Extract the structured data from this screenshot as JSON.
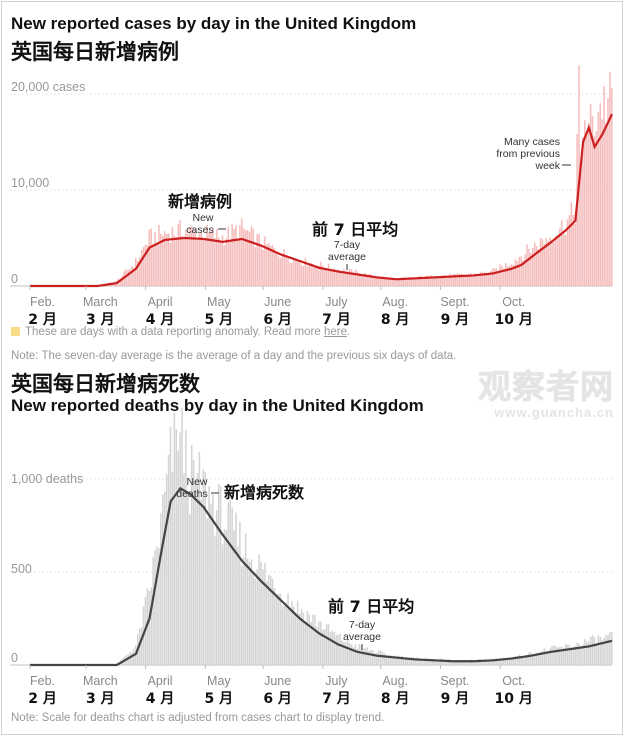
{
  "cases_title_en": "New reported cases by day in the United Kingdom",
  "cases_title_cn": "英国每日新增病例",
  "deaths_title_cn": "英国每日新增病死数",
  "deaths_title_en": "New reported deaths by day in the United Kingdom",
  "anomaly_note": "These are days with a data reporting anomaly. Read more",
  "anomaly_link": "here",
  "anomaly_end": ".",
  "note_average": "Note: The seven-day average is the average of a day and the previous six days of data.",
  "note_scale": "Note: Scale for deaths chart is adjusted from cases chart to display trend.",
  "watermark": {
    "main": "观察者网",
    "sub": "www.guancha.cn"
  },
  "colors": {
    "cases_bar": "#f5bcbc",
    "cases_line": "#cc1f1f",
    "deaths_bar": "#d4d4d4",
    "deaths_line": "#444444",
    "anomaly": "#f7dc8a"
  },
  "chart_data": [
    {
      "type": "bar",
      "title": "New reported cases by day in the United Kingdom",
      "subtitle": "英国每日新增病例",
      "ylabel": "cases",
      "ylim": [
        0,
        20000
      ],
      "y_ticks": [
        "0",
        "10,000",
        "20,000 cases"
      ],
      "months_en": [
        "Feb.",
        "March",
        "April",
        "May",
        "June",
        "July",
        "Aug.",
        "Sept.",
        "Oct."
      ],
      "months_cn": [
        "2 月",
        "3 月",
        "4 月",
        "5 月",
        "6 月",
        "7 月",
        "8 月",
        "9 月",
        "10 月"
      ],
      "series": [
        {
          "name": "New cases (7-day average)",
          "knots": [
            [
              0,
              0
            ],
            [
              35,
              0
            ],
            [
              45,
              300
            ],
            [
              55,
              1800
            ],
            [
              62,
              4000
            ],
            [
              70,
              4800
            ],
            [
              80,
              5000
            ],
            [
              90,
              4900
            ],
            [
              100,
              4600
            ],
            [
              110,
              4900
            ],
            [
              120,
              4200
            ],
            [
              130,
              3300
            ],
            [
              140,
              2600
            ],
            [
              150,
              1900
            ],
            [
              160,
              1500
            ],
            [
              170,
              1200
            ],
            [
              180,
              900
            ],
            [
              190,
              700
            ],
            [
              200,
              800
            ],
            [
              210,
              900
            ],
            [
              220,
              1000
            ],
            [
              230,
              1100
            ],
            [
              240,
              1300
            ],
            [
              250,
              1800
            ],
            [
              255,
              2200
            ],
            [
              262,
              3300
            ],
            [
              270,
              4500
            ],
            [
              278,
              5800
            ],
            [
              283,
              6800
            ],
            [
              287,
              15000
            ],
            [
              290,
              16500
            ],
            [
              293,
              14500
            ],
            [
              297,
              15800
            ],
            [
              302,
              17900
            ]
          ]
        },
        {
          "name": "Daily reported cases",
          "knots": [
            [
              0,
              0
            ],
            [
              35,
              0
            ],
            [
              45,
              500
            ],
            [
              55,
              2500
            ],
            [
              62,
              5000
            ],
            [
              70,
              5500
            ],
            [
              80,
              5800
            ],
            [
              90,
              5500
            ],
            [
              100,
              5100
            ],
            [
              110,
              6000
            ],
            [
              120,
              4500
            ],
            [
              130,
              3500
            ],
            [
              140,
              2600
            ],
            [
              150,
              2200
            ],
            [
              160,
              1700
            ],
            [
              170,
              1400
            ],
            [
              180,
              900
            ],
            [
              190,
              700
            ],
            [
              200,
              850
            ],
            [
              210,
              1000
            ],
            [
              220,
              1100
            ],
            [
              230,
              1200
            ],
            [
              240,
              1500
            ],
            [
              250,
              2500
            ],
            [
              262,
              4200
            ],
            [
              270,
              5200
            ],
            [
              278,
              6500
            ],
            [
              283,
              7800
            ],
            [
              285,
              23000
            ],
            [
              290,
              16000
            ],
            [
              294,
              18000
            ],
            [
              297,
              19200
            ],
            [
              302,
              19000
            ]
          ]
        }
      ],
      "annotations": [
        {
          "text_cn": "新增病例",
          "text_en": [
            "New",
            "cases"
          ]
        },
        {
          "text_cn": "前 7 日平均",
          "text_en": [
            "7-day",
            "average"
          ]
        },
        {
          "text_en": [
            "Many cases",
            "from previous",
            "week"
          ]
        }
      ]
    },
    {
      "type": "bar",
      "title": "New reported deaths by day in the United Kingdom",
      "subtitle": "英国每日新增病死数",
      "ylabel": "deaths",
      "ylim": [
        0,
        1000
      ],
      "y_ticks": [
        "0",
        "500",
        "1,000 deaths"
      ],
      "months_en": [
        "Feb.",
        "March",
        "April",
        "May",
        "June",
        "July",
        "Aug.",
        "Sept.",
        "Oct."
      ],
      "months_cn": [
        "2 月",
        "3 月",
        "4 月",
        "5 月",
        "6 月",
        "7 月",
        "8 月",
        "9 月",
        "10 月"
      ],
      "series": [
        {
          "name": "New deaths (7-day average)",
          "knots": [
            [
              0,
              0
            ],
            [
              45,
              0
            ],
            [
              55,
              60
            ],
            [
              62,
              250
            ],
            [
              68,
              600
            ],
            [
              73,
              880
            ],
            [
              78,
              950
            ],
            [
              83,
              920
            ],
            [
              90,
              850
            ],
            [
              100,
              700
            ],
            [
              110,
              560
            ],
            [
              120,
              450
            ],
            [
              130,
              350
            ],
            [
              140,
              250
            ],
            [
              150,
              170
            ],
            [
              160,
              110
            ],
            [
              170,
              70
            ],
            [
              180,
              50
            ],
            [
              190,
              40
            ],
            [
              200,
              30
            ],
            [
              210,
              25
            ],
            [
              220,
              20
            ],
            [
              230,
              20
            ],
            [
              240,
              25
            ],
            [
              250,
              35
            ],
            [
              260,
              50
            ],
            [
              270,
              70
            ],
            [
              280,
              85
            ],
            [
              290,
              100
            ],
            [
              302,
              130
            ]
          ]
        },
        {
          "name": "Daily reported deaths",
          "knots": [
            [
              0,
              0
            ],
            [
              45,
              0
            ],
            [
              55,
              100
            ],
            [
              62,
              400
            ],
            [
              68,
              750
            ],
            [
              73,
              1100
            ],
            [
              78,
              1250
            ],
            [
              83,
              1000
            ],
            [
              90,
              950
            ],
            [
              100,
              800
            ],
            [
              110,
              650
            ],
            [
              120,
              520
            ],
            [
              130,
              400
            ],
            [
              140,
              300
            ],
            [
              150,
              230
            ],
            [
              160,
              150
            ],
            [
              170,
              100
            ],
            [
              180,
              70
            ],
            [
              190,
              45
            ],
            [
              200,
              35
            ],
            [
              210,
              30
            ],
            [
              220,
              25
            ],
            [
              230,
              25
            ],
            [
              240,
              30
            ],
            [
              250,
              40
            ],
            [
              260,
              60
            ],
            [
              270,
              85
            ],
            [
              280,
              100
            ],
            [
              290,
              130
            ],
            [
              302,
              150
            ]
          ]
        }
      ],
      "annotations": [
        {
          "text_cn": "新增病死数",
          "text_en": [
            "New",
            "deaths"
          ]
        },
        {
          "text_cn": "前 7 日平均",
          "text_en": [
            "7-day",
            "average"
          ]
        }
      ]
    }
  ]
}
